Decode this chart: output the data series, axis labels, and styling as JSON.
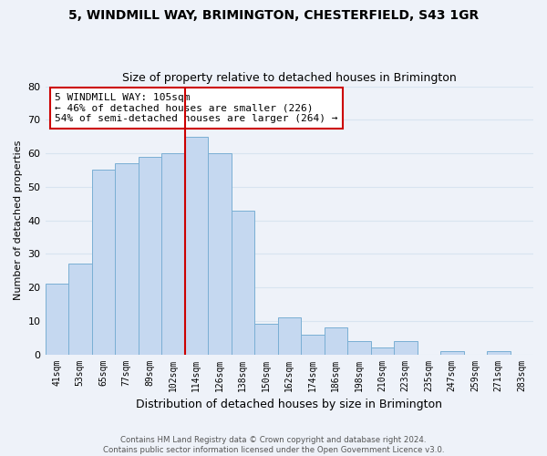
{
  "title": "5, WINDMILL WAY, BRIMINGTON, CHESTERFIELD, S43 1GR",
  "subtitle": "Size of property relative to detached houses in Brimington",
  "xlabel": "Distribution of detached houses by size in Brimington",
  "ylabel": "Number of detached properties",
  "bar_labels": [
    "41sqm",
    "53sqm",
    "65sqm",
    "77sqm",
    "89sqm",
    "102sqm",
    "114sqm",
    "126sqm",
    "138sqm",
    "150sqm",
    "162sqm",
    "174sqm",
    "186sqm",
    "198sqm",
    "210sqm",
    "223sqm",
    "235sqm",
    "247sqm",
    "259sqm",
    "271sqm",
    "283sqm"
  ],
  "bar_values": [
    21,
    27,
    55,
    57,
    59,
    60,
    65,
    60,
    43,
    9,
    11,
    6,
    8,
    4,
    2,
    4,
    0,
    1,
    0,
    1,
    0
  ],
  "bar_color": "#c5d8f0",
  "bar_edge_color": "#7aafd4",
  "vline_x_index": 5,
  "vline_color": "#cc0000",
  "annotation_line1": "5 WINDMILL WAY: 105sqm",
  "annotation_line2": "← 46% of detached houses are smaller (226)",
  "annotation_line3": "54% of semi-detached houses are larger (264) →",
  "annotation_box_color": "#ffffff",
  "annotation_box_edge_color": "#cc0000",
  "ylim": [
    0,
    80
  ],
  "yticks": [
    0,
    10,
    20,
    30,
    40,
    50,
    60,
    70,
    80
  ],
  "footer": "Contains HM Land Registry data © Crown copyright and database right 2024.\nContains public sector information licensed under the Open Government Licence v3.0.",
  "grid_color": "#d8e4f0",
  "background_color": "#eef2f9"
}
